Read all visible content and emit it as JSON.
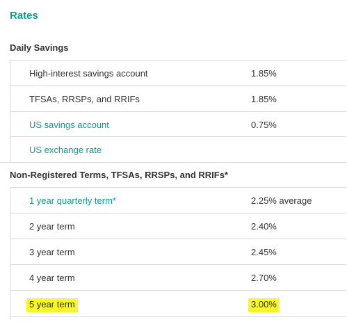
{
  "title": "Rates",
  "daily_savings": {
    "header": "Daily Savings",
    "rows": [
      {
        "label": "High-interest savings account",
        "value": "1.85%"
      },
      {
        "label": "TFSAs, RRSPs, and RRIFs",
        "value": "1.85%"
      },
      {
        "label": "US savings account",
        "value": "0.75%"
      },
      {
        "label": "US exchange rate",
        "value": ""
      }
    ]
  },
  "terms": {
    "header": "Non-Registered Terms, TFSAs, RRSPs, and RRIFs*",
    "rows": [
      {
        "label": "1 year quarterly term*",
        "value": "2.25% average"
      },
      {
        "label": "2 year term",
        "value": "2.40%"
      },
      {
        "label": "3 year term",
        "value": "2.45%"
      },
      {
        "label": "4 year term",
        "value": "2.70%"
      },
      {
        "label": "5 year term",
        "value": "3.00%"
      }
    ]
  },
  "colors": {
    "link": "#0f9a8a",
    "text": "#333333",
    "highlight": "#f8f72a",
    "divider": "#dadada"
  }
}
